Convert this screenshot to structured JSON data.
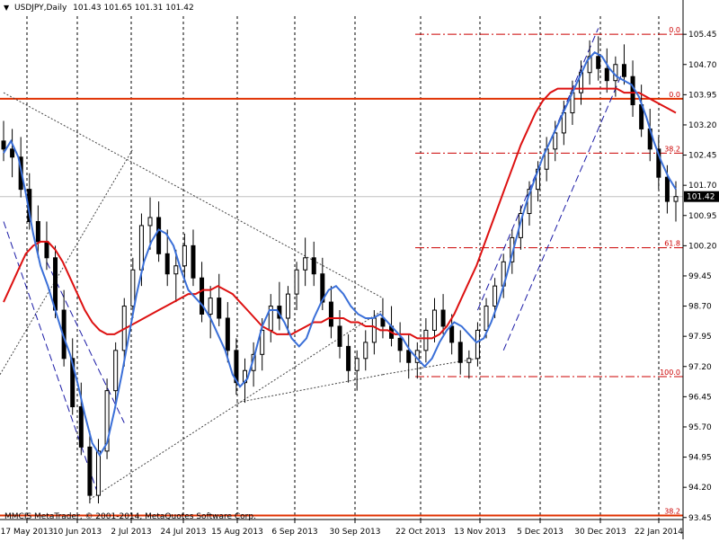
{
  "header": {
    "symbol_tf": "USDJPY,Daily",
    "ohlc": "101.43 101.65 101.31 101.42"
  },
  "copyright": "MMCIS MetaTrader, © 2001-2014, MetaQuotes Software Corp.",
  "colors": {
    "background": "#ffffff",
    "candle": "#000000",
    "ma_fast": "#3a6fd8",
    "ma_slow": "#dd1111",
    "fib": "#cc0000",
    "hline_strong": "#e03000",
    "trendline": "#444444",
    "channel": "#1a1aa6",
    "grid_vertical": "#000000",
    "current_price_box": "#000000"
  },
  "chart_data": {
    "type": "candlestick",
    "symbol": "USDJPY",
    "timeframe": "Daily",
    "price_axis": {
      "ylim": [
        93.4,
        105.9
      ],
      "ticks": [
        "105.45",
        "104.70",
        "103.95",
        "103.20",
        "102.45",
        "101.70",
        "100.95",
        "100.20",
        "99.45",
        "98.70",
        "97.95",
        "97.20",
        "96.45",
        "95.70",
        "94.95",
        "94.20",
        "93.45"
      ]
    },
    "current_price": "101.42",
    "date_ticks": [
      "17 May 2013",
      "10 Jun 2013",
      "2 Jul 2013",
      "24 Jul 2013",
      "15 Aug 2013",
      "6 Sep 2013",
      "30 Sep 2013",
      "22 Oct 2013",
      "13 Nov 2013",
      "5 Dec 2013",
      "30 Dec 2013",
      "22 Jan 2014"
    ],
    "fib_levels": [
      {
        "label": "0.0",
        "price": 105.45
      },
      {
        "label": "38.2",
        "price": 102.5
      },
      {
        "label": "61.8",
        "price": 100.15
      },
      {
        "label": "100.0",
        "price": 96.95
      }
    ],
    "fib_levels_2": [
      {
        "label": "0.0",
        "price": 103.85
      },
      {
        "label": "38.2",
        "price": 93.5
      }
    ],
    "ma_fast": [
      102.5,
      102.8,
      102.4,
      101.5,
      100.5,
      99.7,
      99.2,
      98.6,
      98.0,
      97.5,
      96.8,
      96.0,
      95.3,
      95.0,
      95.3,
      96.1,
      97.0,
      98.0,
      99.0,
      99.8,
      100.3,
      100.6,
      100.5,
      100.2,
      99.6,
      99.1,
      98.9,
      98.7,
      98.4,
      98.0,
      97.6,
      97.0,
      96.7,
      96.9,
      97.5,
      98.2,
      98.6,
      98.6,
      98.3,
      97.9,
      97.7,
      97.9,
      98.4,
      98.8,
      99.1,
      99.2,
      99.0,
      98.7,
      98.5,
      98.4,
      98.4,
      98.5,
      98.3,
      98.1,
      97.9,
      97.6,
      97.4,
      97.2,
      97.4,
      97.8,
      98.1,
      98.3,
      98.2,
      98.0,
      97.8,
      97.9,
      98.3,
      98.8,
      99.4,
      100.1,
      100.8,
      101.4,
      101.9,
      102.4,
      102.8,
      103.2,
      103.6,
      104.0,
      104.4,
      104.8,
      105.0,
      104.9,
      104.6,
      104.4,
      104.3,
      104.2,
      103.9,
      103.4,
      102.8,
      102.3,
      101.9,
      101.6
    ],
    "ma_slow": [
      98.8,
      99.2,
      99.6,
      100.0,
      100.2,
      100.3,
      100.3,
      100.1,
      99.8,
      99.4,
      99.0,
      98.6,
      98.3,
      98.1,
      98.0,
      98.0,
      98.1,
      98.2,
      98.3,
      98.4,
      98.5,
      98.6,
      98.7,
      98.8,
      98.9,
      99.0,
      99.0,
      99.1,
      99.1,
      99.2,
      99.1,
      99.0,
      98.8,
      98.6,
      98.4,
      98.2,
      98.1,
      98.0,
      98.0,
      98.0,
      98.1,
      98.2,
      98.3,
      98.3,
      98.4,
      98.4,
      98.4,
      98.3,
      98.3,
      98.2,
      98.2,
      98.1,
      98.1,
      98.0,
      98.0,
      98.0,
      97.9,
      97.9,
      97.9,
      98.0,
      98.2,
      98.5,
      98.9,
      99.3,
      99.7,
      100.2,
      100.7,
      101.2,
      101.7,
      102.2,
      102.7,
      103.1,
      103.5,
      103.8,
      104.0,
      104.1,
      104.1,
      104.1,
      104.1,
      104.1,
      104.1,
      104.1,
      104.1,
      104.1,
      104.0,
      104.0,
      104.0,
      103.9,
      103.8,
      103.7,
      103.6,
      103.5
    ],
    "series": [
      {
        "name": "candles",
        "values": [
          [
            102.8,
            103.3,
            102.3,
            102.6
          ],
          [
            102.6,
            103.1,
            101.9,
            102.4
          ],
          [
            102.4,
            102.9,
            101.4,
            101.6
          ],
          [
            101.6,
            102.0,
            100.6,
            100.8
          ],
          [
            100.8,
            101.2,
            99.9,
            100.3
          ],
          [
            100.3,
            100.8,
            99.6,
            99.9
          ],
          [
            99.9,
            100.2,
            98.4,
            98.6
          ],
          [
            98.6,
            99.1,
            97.2,
            97.4
          ],
          [
            97.4,
            97.9,
            96.0,
            96.2
          ],
          [
            96.2,
            96.8,
            95.0,
            95.2
          ],
          [
            95.2,
            95.6,
            93.8,
            94.0
          ],
          [
            94.0,
            95.4,
            93.8,
            95.1
          ],
          [
            95.1,
            96.9,
            94.9,
            96.6
          ],
          [
            96.6,
            97.8,
            96.3,
            97.6
          ],
          [
            97.6,
            98.9,
            97.2,
            98.7
          ],
          [
            98.7,
            99.9,
            98.4,
            99.6
          ],
          [
            99.6,
            101.0,
            99.2,
            100.7
          ],
          [
            100.7,
            101.4,
            100.1,
            100.9
          ],
          [
            100.9,
            101.3,
            99.8,
            100.0
          ],
          [
            100.0,
            100.6,
            99.2,
            99.5
          ],
          [
            99.5,
            100.1,
            98.8,
            99.7
          ],
          [
            99.7,
            100.5,
            99.3,
            100.2
          ],
          [
            100.2,
            100.6,
            99.2,
            99.4
          ],
          [
            99.4,
            99.8,
            98.3,
            98.5
          ],
          [
            98.5,
            99.2,
            97.9,
            98.9
          ],
          [
            98.9,
            99.5,
            98.2,
            98.4
          ],
          [
            98.4,
            98.8,
            97.3,
            97.6
          ],
          [
            97.6,
            97.9,
            96.5,
            96.8
          ],
          [
            96.8,
            97.4,
            96.3,
            97.1
          ],
          [
            97.1,
            97.8,
            96.7,
            97.5
          ],
          [
            97.5,
            98.4,
            97.1,
            98.1
          ],
          [
            98.1,
            99.0,
            97.8,
            98.7
          ],
          [
            98.7,
            99.3,
            98.1,
            98.4
          ],
          [
            98.4,
            99.2,
            98.0,
            99.0
          ],
          [
            99.0,
            99.8,
            98.6,
            99.6
          ],
          [
            99.6,
            100.4,
            99.2,
            99.9
          ],
          [
            99.9,
            100.3,
            99.2,
            99.5
          ],
          [
            99.5,
            99.9,
            98.6,
            98.8
          ],
          [
            98.8,
            99.2,
            97.9,
            98.2
          ],
          [
            98.2,
            98.6,
            97.4,
            97.7
          ],
          [
            97.7,
            98.0,
            96.8,
            97.1
          ],
          [
            97.1,
            97.6,
            96.6,
            97.4
          ],
          [
            97.4,
            98.1,
            97.1,
            97.8
          ],
          [
            97.8,
            98.6,
            97.5,
            98.4
          ],
          [
            98.4,
            98.9,
            97.9,
            98.2
          ],
          [
            98.2,
            98.7,
            97.7,
            97.9
          ],
          [
            97.9,
            98.3,
            97.3,
            97.6
          ],
          [
            97.6,
            98.0,
            96.9,
            97.3
          ],
          [
            97.3,
            97.8,
            96.9,
            97.6
          ],
          [
            97.6,
            98.4,
            97.3,
            98.1
          ],
          [
            98.1,
            98.9,
            97.8,
            98.6
          ],
          [
            98.6,
            99.0,
            98.0,
            98.2
          ],
          [
            98.2,
            98.5,
            97.5,
            97.8
          ],
          [
            97.8,
            98.1,
            97.0,
            97.3
          ],
          [
            97.3,
            97.6,
            96.9,
            97.4
          ],
          [
            97.4,
            98.3,
            97.2,
            98.1
          ],
          [
            98.1,
            98.9,
            97.9,
            98.7
          ],
          [
            98.7,
            99.4,
            98.4,
            99.2
          ],
          [
            99.2,
            100.0,
            98.9,
            99.8
          ],
          [
            99.8,
            100.6,
            99.5,
            100.4
          ],
          [
            100.4,
            101.2,
            100.1,
            101.0
          ],
          [
            101.0,
            101.8,
            100.7,
            101.6
          ],
          [
            101.6,
            102.3,
            101.3,
            102.1
          ],
          [
            102.1,
            102.9,
            101.8,
            102.6
          ],
          [
            102.6,
            103.3,
            102.3,
            103.0
          ],
          [
            103.0,
            103.8,
            102.7,
            103.5
          ],
          [
            103.5,
            104.3,
            103.2,
            104.0
          ],
          [
            104.0,
            104.8,
            103.7,
            104.5
          ],
          [
            104.5,
            105.3,
            104.2,
            104.9
          ],
          [
            104.9,
            105.4,
            104.3,
            104.6
          ],
          [
            104.6,
            105.1,
            104.0,
            104.3
          ],
          [
            104.3,
            104.9,
            103.9,
            104.7
          ],
          [
            104.7,
            105.2,
            104.2,
            104.4
          ],
          [
            104.4,
            104.8,
            103.4,
            103.7
          ],
          [
            103.7,
            104.2,
            102.9,
            103.1
          ],
          [
            103.1,
            103.6,
            102.3,
            102.6
          ],
          [
            102.6,
            102.9,
            101.6,
            101.9
          ],
          [
            101.9,
            102.2,
            101.0,
            101.3
          ],
          [
            101.3,
            101.8,
            100.8,
            101.42
          ]
        ]
      }
    ]
  }
}
